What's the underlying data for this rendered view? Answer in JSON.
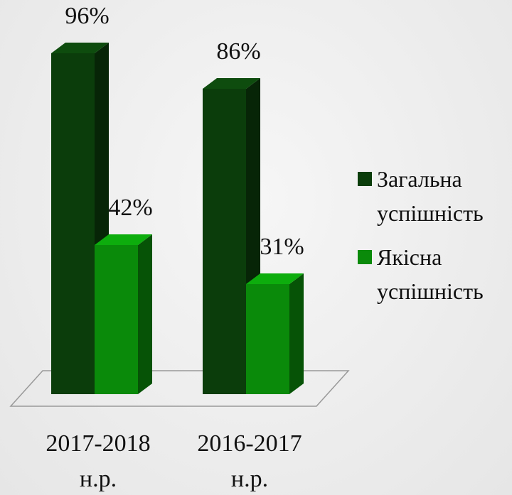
{
  "chart_data": {
    "type": "bar3d",
    "categories": [
      "2017-2018 н.р.",
      "2016-2017 н.р."
    ],
    "series": [
      {
        "name": "Загальна успішність",
        "color": "#0b3d0b",
        "values": [
          96,
          86
        ],
        "value_labels": [
          "96%",
          "86%"
        ]
      },
      {
        "name": "Якісна успішність",
        "color": "#0a8a0a",
        "values": [
          42,
          31
        ],
        "value_labels": [
          "42%",
          "31%"
        ]
      }
    ],
    "legend": "right"
  }
}
